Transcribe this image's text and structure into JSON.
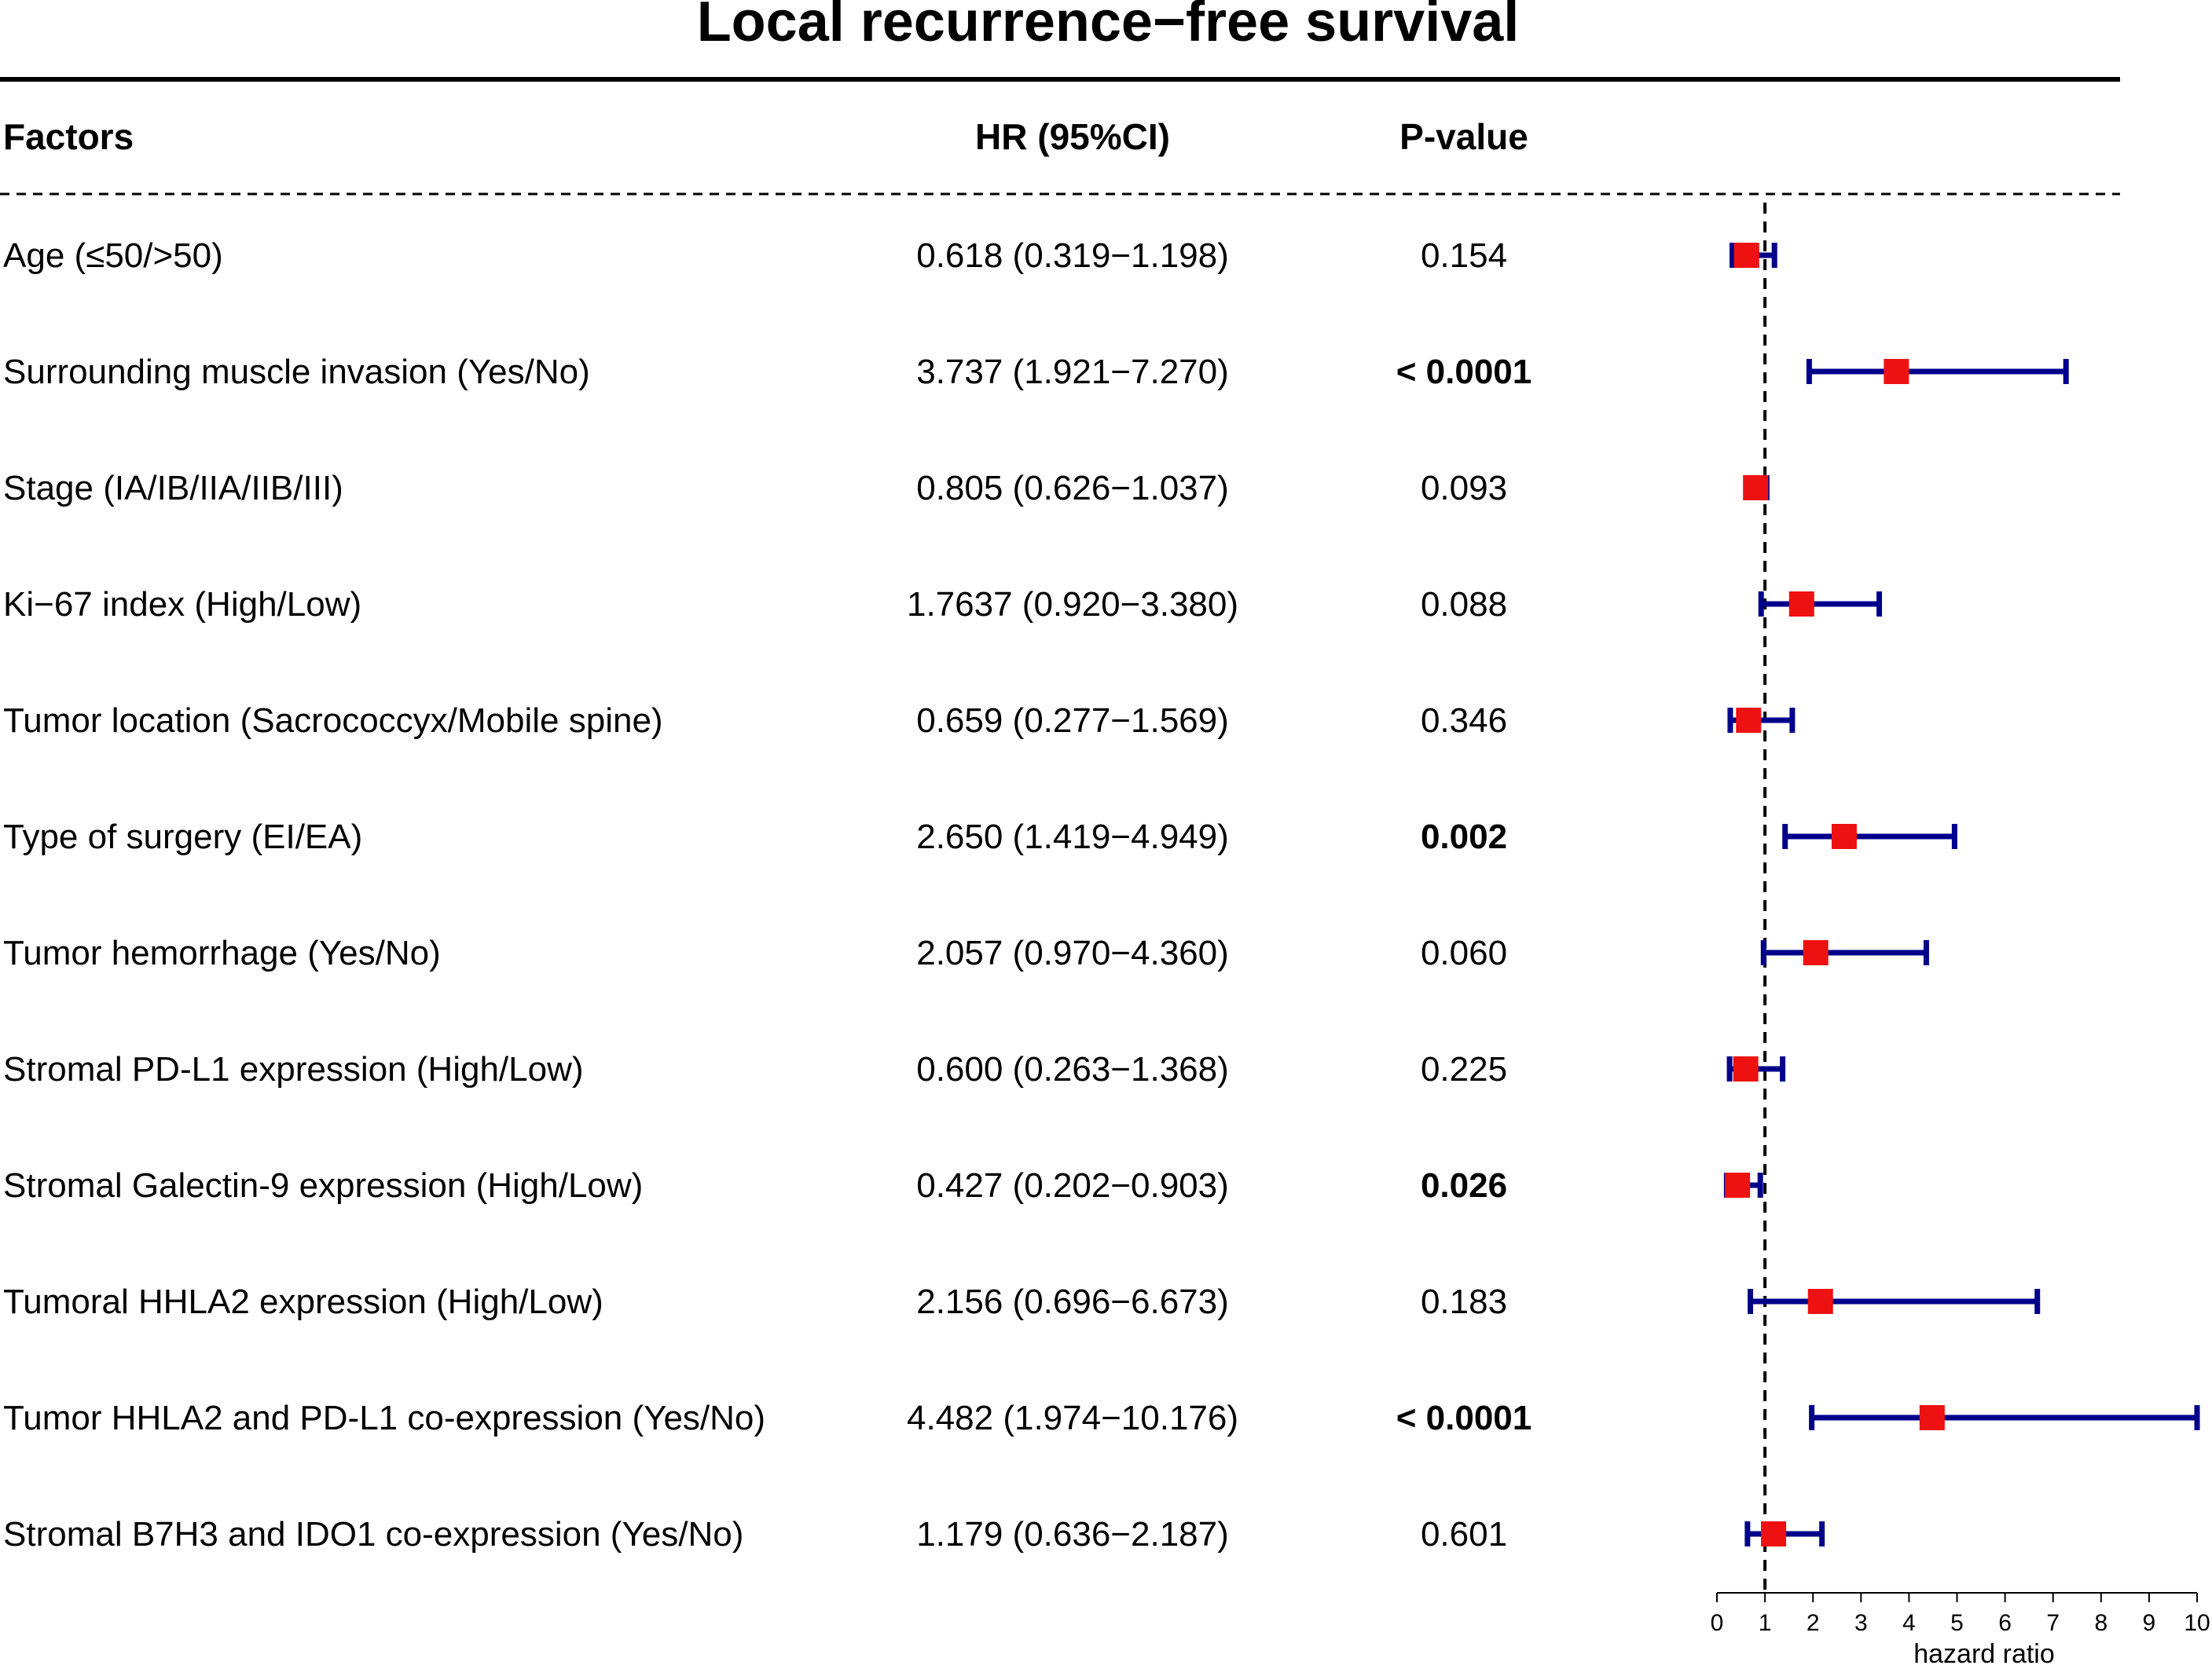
{
  "chart_data": {
    "type": "forest",
    "title": "Local recurrence−free survival",
    "headers": {
      "factor": "Factors",
      "hr": "HR (95%CI)",
      "p": "P-value"
    },
    "xlabel": "hazard ratio",
    "xlim": [
      0,
      10
    ],
    "xticks": [
      "0",
      "1",
      "2",
      "3",
      "4",
      "5",
      "6",
      "7",
      "8",
      "9",
      "10"
    ],
    "reference_line": 1,
    "colors": {
      "point": "#ee1111",
      "ci": "#00008b",
      "text": "#000000"
    },
    "rows": [
      {
        "factor": "Age (≤50/>50)",
        "hr_text": "0.618 (0.319−1.198)",
        "p_text": "0.154",
        "p_bold": false,
        "hr": 0.618,
        "lo": 0.319,
        "hi": 1.198
      },
      {
        "factor": "Surrounding muscle invasion (Yes/No)",
        "hr_text": "3.737 (1.921−7.270)",
        "p_text": "< 0.0001",
        "p_bold": true,
        "hr": 3.737,
        "lo": 1.921,
        "hi": 7.27
      },
      {
        "factor": "Stage (IA/IB/IIA/IIB/III)",
        "hr_text": "0.805 (0.626−1.037)",
        "p_text": "0.093",
        "p_bold": false,
        "hr": 0.805,
        "lo": 0.626,
        "hi": 1.037
      },
      {
        "factor": "Ki−67 index (High/Low)",
        "hr_text": "1.7637 (0.920−3.380)",
        "p_text": "0.088",
        "p_bold": false,
        "hr": 1.7637,
        "lo": 0.92,
        "hi": 3.38
      },
      {
        "factor": "Tumor location (Sacrococcyx/Mobile spine)",
        "hr_text": "0.659 (0.277−1.569)",
        "p_text": "0.346",
        "p_bold": false,
        "hr": 0.659,
        "lo": 0.277,
        "hi": 1.569
      },
      {
        "factor": "Type of surgery (EI/EA)",
        "hr_text": "2.650 (1.419−4.949)",
        "p_text": "0.002",
        "p_bold": true,
        "hr": 2.65,
        "lo": 1.419,
        "hi": 4.949
      },
      {
        "factor": "Tumor hemorrhage (Yes/No)",
        "hr_text": "2.057 (0.970−4.360)",
        "p_text": "0.060",
        "p_bold": false,
        "hr": 2.057,
        "lo": 0.97,
        "hi": 4.36
      },
      {
        "factor": "Stromal PD-L1 expression (High/Low)",
        "hr_text": "0.600 (0.263−1.368)",
        "p_text": "0.225",
        "p_bold": false,
        "hr": 0.6,
        "lo": 0.263,
        "hi": 1.368
      },
      {
        "factor": "Stromal Galectin-9 expression (High/Low)",
        "hr_text": "0.427 (0.202−0.903)",
        "p_text": "0.026",
        "p_bold": true,
        "hr": 0.427,
        "lo": 0.202,
        "hi": 0.903
      },
      {
        "factor": "Tumoral HHLA2 expression (High/Low)",
        "hr_text": "2.156 (0.696−6.673)",
        "p_text": "0.183",
        "p_bold": false,
        "hr": 2.156,
        "lo": 0.696,
        "hi": 6.673
      },
      {
        "factor": "Tumor HHLA2 and PD-L1 co-expression (Yes/No)",
        "hr_text": "4.482 (1.974−10.176)",
        "p_text": "< 0.0001",
        "p_bold": true,
        "hr": 4.482,
        "lo": 1.974,
        "hi": 10.176
      },
      {
        "factor": "Stromal B7H3 and IDO1 co-expression (Yes/No)",
        "hr_text": "1.179 (0.636−2.187)",
        "p_text": "0.601",
        "p_bold": false,
        "hr": 1.179,
        "lo": 0.636,
        "hi": 2.187
      }
    ]
  }
}
